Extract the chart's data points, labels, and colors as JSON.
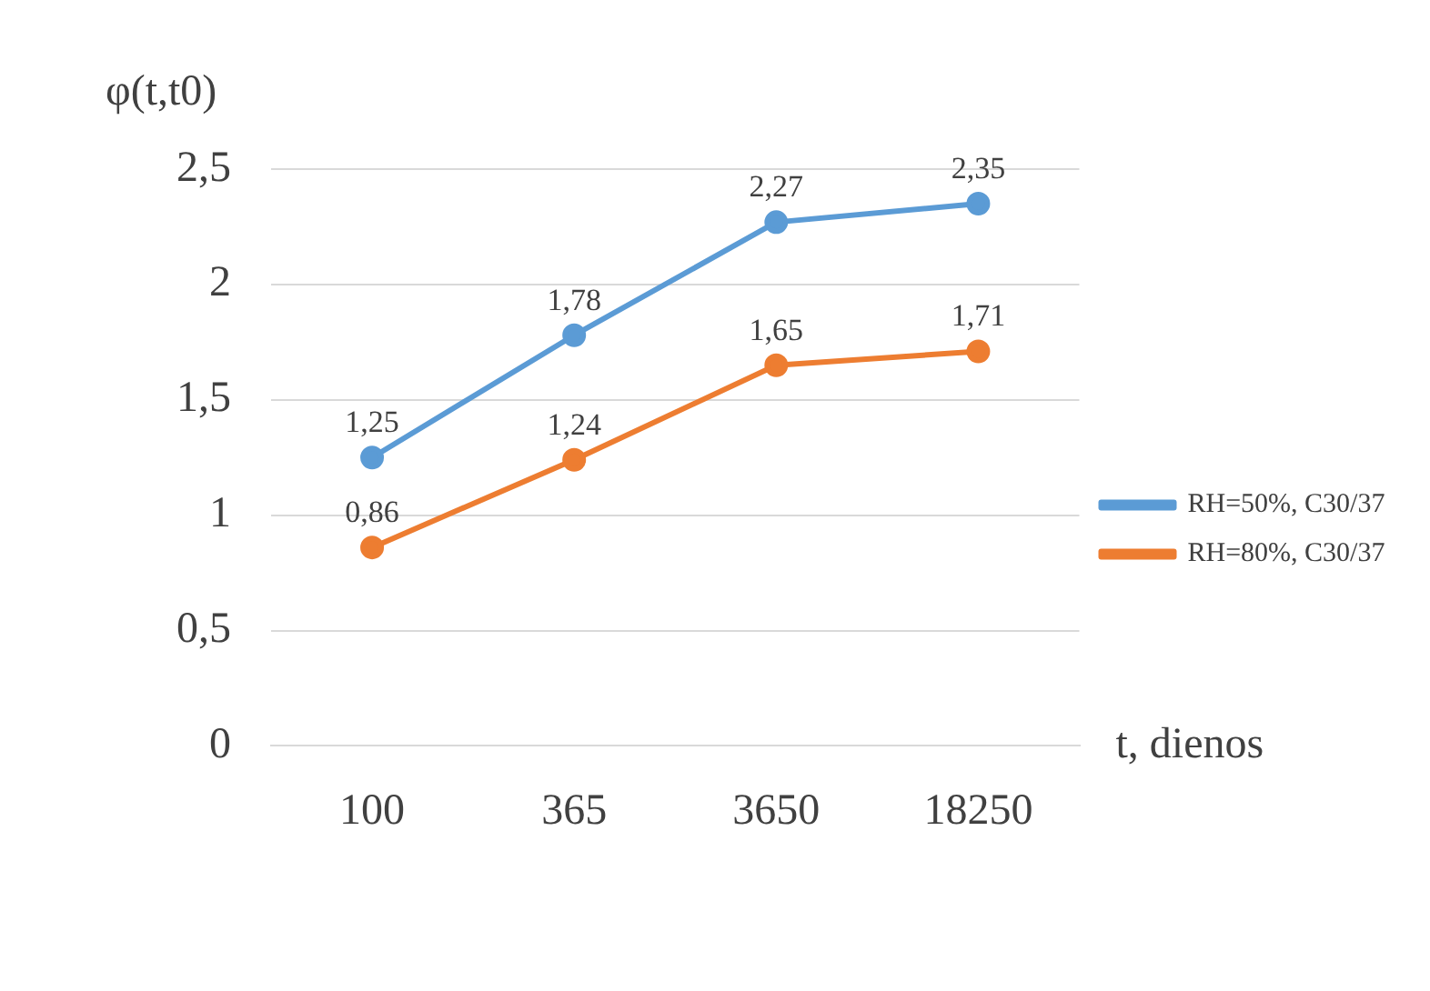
{
  "chart_data": {
    "type": "line",
    "xlabel": "t, dienos",
    "ylabel": "φ(t,t0)",
    "categories": [
      "100",
      "365",
      "3650",
      "18250"
    ],
    "series": [
      {
        "name": "RH=50%, C30/37",
        "color": "#5b9bd5",
        "values": [
          1.25,
          1.78,
          2.27,
          2.35
        ],
        "value_labels": [
          "1,25",
          "1,78",
          "2,27",
          "2,35"
        ]
      },
      {
        "name": "RH=80%, C30/37",
        "color": "#ed7d31",
        "values": [
          0.86,
          1.24,
          1.65,
          1.71
        ],
        "value_labels": [
          "0,86",
          "1,24",
          "1,65",
          "1,71"
        ]
      }
    ],
    "ylim": [
      0,
      2.5
    ],
    "yticks": [
      0,
      {
        "value": 0.5,
        "label": "0,5"
      },
      1,
      {
        "value": 1.5,
        "label": "1,5"
      },
      2,
      {
        "value": 2.5,
        "label": "2,5"
      }
    ],
    "grid": "y",
    "legend": "right",
    "marker": "circle",
    "line_style": "solid"
  }
}
